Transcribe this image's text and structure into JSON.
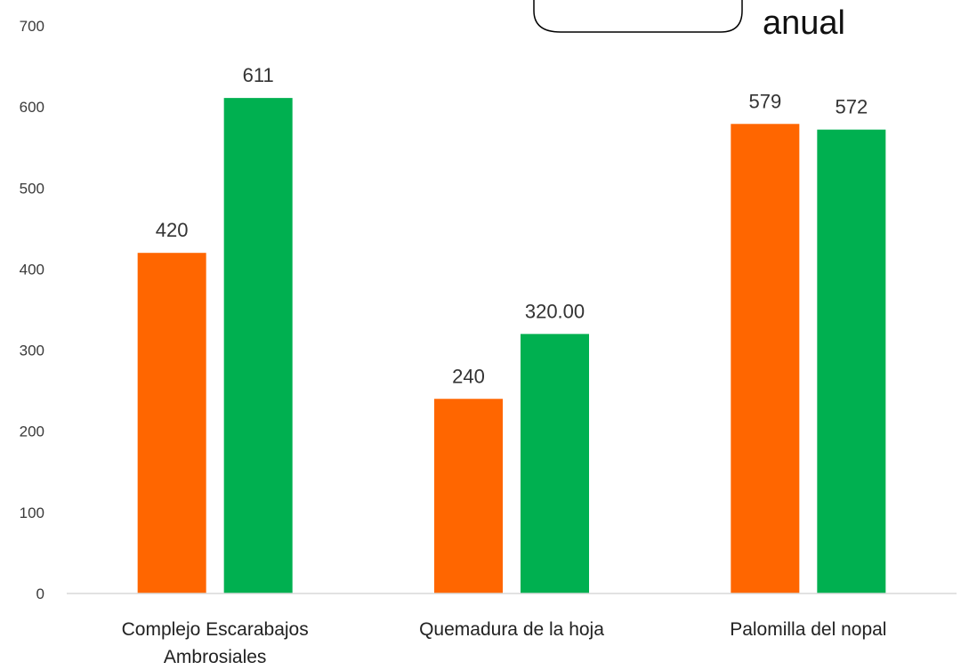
{
  "chart_data": {
    "type": "bar",
    "categories": [
      "Complejo Escarabajos Ambrosiales",
      "Quemadura de la hoja",
      "Palomilla del nopal"
    ],
    "category_lines": [
      [
        "Complejo Escarabajos",
        "Ambrosiales"
      ],
      [
        "Quemadura de la hoja"
      ],
      [
        "Palomilla del nopal"
      ]
    ],
    "series": [
      {
        "values": [
          420,
          240,
          579
        ],
        "labels": [
          "420",
          "240",
          "579"
        ],
        "color": "#ff6600"
      },
      {
        "values": [
          611,
          320,
          572
        ],
        "labels": [
          "611",
          "320.00",
          "572"
        ],
        "color": "#00b050"
      }
    ],
    "ylim": [
      0,
      700
    ],
    "yticks": [
      0,
      100,
      200,
      300,
      400,
      500,
      600,
      700
    ],
    "grid": false,
    "title_fragment": "anual"
  }
}
